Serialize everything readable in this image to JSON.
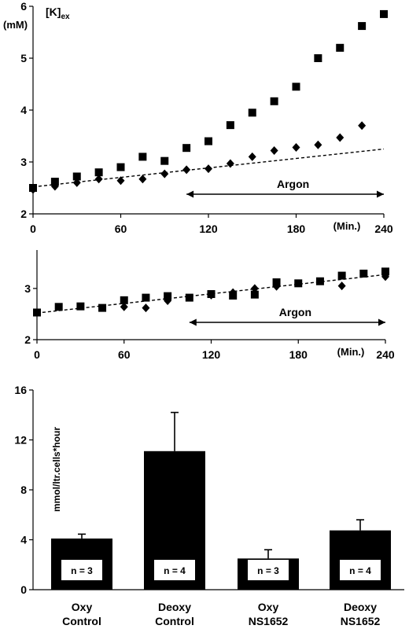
{
  "chart_data": [
    {
      "type": "scatter",
      "ylabel": "(mM)",
      "ylabel_symbol": "[K]",
      "ylabel_subscript": "ex",
      "xlabel": "(Min.)",
      "xlim": [
        0,
        240
      ],
      "ylim": [
        2,
        6
      ],
      "xticks": [
        0,
        60,
        120,
        180,
        240
      ],
      "yticks": [
        2,
        3,
        4,
        5,
        6
      ],
      "annotation": "Argon",
      "argon_range": [
        105,
        240
      ],
      "series": [
        {
          "marker": "square",
          "x": [
            0,
            15,
            30,
            45,
            60,
            75,
            90,
            105,
            120,
            135,
            150,
            165,
            180,
            195,
            210,
            225,
            240
          ],
          "y": [
            2.5,
            2.62,
            2.72,
            2.8,
            2.9,
            3.1,
            3.02,
            3.27,
            3.4,
            3.71,
            3.95,
            4.17,
            4.45,
            5.0,
            5.2,
            5.62,
            5.85
          ]
        },
        {
          "marker": "diamond",
          "x": [
            0,
            15,
            30,
            45,
            60,
            75,
            90,
            105,
            120,
            135,
            150,
            165,
            180,
            195,
            210,
            225
          ],
          "y": [
            2.47,
            2.53,
            2.6,
            2.67,
            2.64,
            2.67,
            2.77,
            2.85,
            2.87,
            2.97,
            3.1,
            3.22,
            3.28,
            3.33,
            3.47,
            3.7
          ]
        }
      ],
      "trendline": {
        "x": [
          0,
          240
        ],
        "y": [
          2.52,
          3.25
        ]
      }
    },
    {
      "type": "scatter",
      "xlabel": "(Min.)",
      "xlim": [
        0,
        240
      ],
      "ylim": [
        2,
        3.75
      ],
      "xticks": [
        0,
        60,
        120,
        180,
        240
      ],
      "yticks": [
        2,
        3
      ],
      "annotation": "Argon",
      "argon_range": [
        105,
        240
      ],
      "series": [
        {
          "marker": "square",
          "x": [
            0,
            15,
            30,
            45,
            60,
            75,
            90,
            105,
            120,
            135,
            150,
            165,
            180,
            195,
            210,
            225,
            240
          ],
          "y": [
            2.53,
            2.64,
            2.65,
            2.62,
            2.77,
            2.82,
            2.85,
            2.82,
            2.89,
            2.86,
            2.88,
            3.12,
            3.1,
            3.14,
            3.25,
            3.29,
            3.33
          ]
        },
        {
          "marker": "diamond",
          "x": [
            60,
            75,
            90,
            120,
            135,
            150,
            165,
            210,
            240
          ],
          "y": [
            2.64,
            2.62,
            2.76,
            2.87,
            2.92,
            3.0,
            3.04,
            3.05,
            3.23
          ]
        }
      ],
      "trendline": {
        "x": [
          0,
          240
        ],
        "y": [
          2.52,
          3.27
        ]
      }
    },
    {
      "type": "bar",
      "ylabel": "mmol/ltr.cells*hour",
      "ylim": [
        0,
        16
      ],
      "yticks": [
        0,
        4,
        8,
        12,
        16
      ],
      "categories": [
        [
          "Oxy",
          "Control"
        ],
        [
          "Deoxy",
          "Control"
        ],
        [
          "Oxy",
          "NS1652"
        ],
        [
          "Deoxy",
          "NS1652"
        ]
      ],
      "values": [
        4.1,
        11.1,
        2.5,
        4.75
      ],
      "errors": [
        0.35,
        3.1,
        0.7,
        0.85
      ],
      "n_labels": [
        "n = 3",
        "n = 4",
        "n = 3",
        "n = 4"
      ]
    }
  ]
}
